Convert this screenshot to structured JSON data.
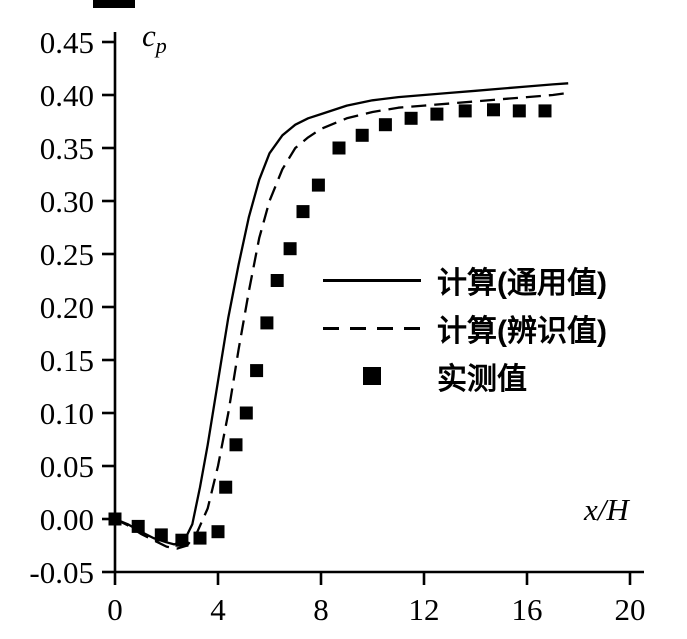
{
  "figure": {
    "y_axis_title_main": "c",
    "y_axis_title_sub": "p",
    "x_axis_title": "x/H"
  },
  "colors": {
    "ink": "#000000",
    "background": "#ffffff"
  },
  "chart_data": {
    "type": "line",
    "title": "",
    "xlabel": "x/H",
    "ylabel": "cp",
    "xlim": [
      0,
      20
    ],
    "ylim": [
      -0.05,
      0.45
    ],
    "x_ticks": [
      0,
      4,
      8,
      12,
      16,
      20
    ],
    "y_ticks": [
      -0.05,
      0.0,
      0.05,
      0.1,
      0.15,
      0.2,
      0.25,
      0.3,
      0.35,
      0.4,
      0.45
    ],
    "grid": false,
    "legend_position": "center-right",
    "series": [
      {
        "name": "计算(通用值)",
        "type": "line",
        "style": "solid",
        "x": [
          0,
          0.5,
          1.0,
          1.5,
          2.0,
          2.3,
          2.7,
          3.0,
          3.3,
          3.6,
          4.0,
          4.4,
          4.8,
          5.2,
          5.6,
          6.0,
          6.5,
          7.0,
          7.5,
          8.0,
          9.0,
          10.0,
          11.0,
          12.0,
          13.0,
          14.0,
          15.0,
          16.0,
          17.0,
          17.6
        ],
        "y": [
          0.0,
          -0.005,
          -0.012,
          -0.018,
          -0.022,
          -0.024,
          -0.02,
          -0.005,
          0.03,
          0.07,
          0.13,
          0.19,
          0.24,
          0.285,
          0.32,
          0.345,
          0.362,
          0.372,
          0.378,
          0.382,
          0.39,
          0.395,
          0.398,
          0.4,
          0.402,
          0.404,
          0.406,
          0.408,
          0.41,
          0.411
        ]
      },
      {
        "name": "计算(辨识值)",
        "type": "line",
        "style": "dashed",
        "x": [
          0,
          0.5,
          1.0,
          1.5,
          2.0,
          2.4,
          2.8,
          3.2,
          3.6,
          4.0,
          4.4,
          4.8,
          5.2,
          5.6,
          6.0,
          6.5,
          7.0,
          7.5,
          8.0,
          9.0,
          10.0,
          11.0,
          12.0,
          13.0,
          14.0,
          15.0,
          16.0,
          17.0,
          17.6
        ],
        "y": [
          0.0,
          -0.006,
          -0.014,
          -0.02,
          -0.026,
          -0.028,
          -0.025,
          -0.012,
          0.01,
          0.05,
          0.1,
          0.16,
          0.215,
          0.265,
          0.3,
          0.33,
          0.35,
          0.36,
          0.368,
          0.378,
          0.384,
          0.388,
          0.39,
          0.392,
          0.394,
          0.396,
          0.398,
          0.4,
          0.402
        ]
      },
      {
        "name": "实测值",
        "type": "scatter",
        "marker": "square",
        "x": [
          0,
          0.9,
          1.8,
          2.6,
          3.3,
          4.0,
          4.3,
          4.7,
          5.1,
          5.5,
          5.9,
          6.3,
          6.8,
          7.3,
          7.9,
          8.7,
          9.6,
          10.5,
          11.5,
          12.5,
          13.6,
          14.7,
          15.7,
          16.7
        ],
        "y": [
          0.0,
          -0.007,
          -0.015,
          -0.02,
          -0.018,
          -0.012,
          0.03,
          0.07,
          0.1,
          0.14,
          0.185,
          0.225,
          0.255,
          0.29,
          0.315,
          0.35,
          0.362,
          0.372,
          0.378,
          0.382,
          0.385,
          0.386,
          0.385,
          0.385
        ]
      }
    ]
  }
}
